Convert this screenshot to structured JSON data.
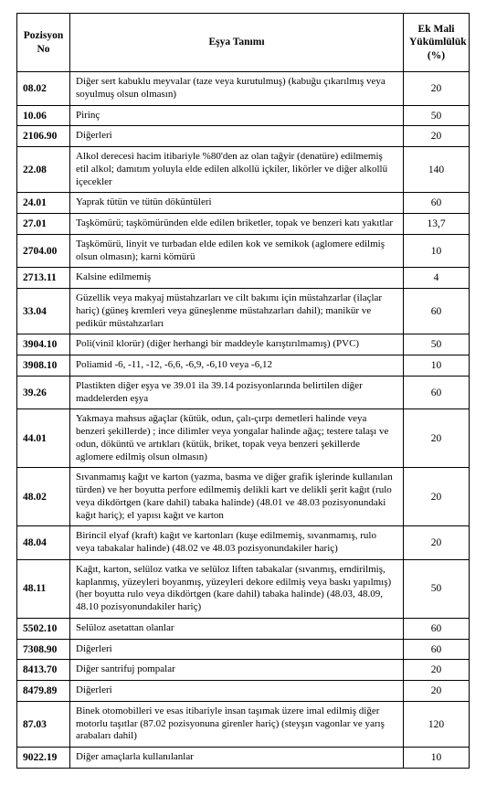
{
  "table": {
    "headers": {
      "position": "Pozisyon No",
      "description": "Eşya Tanımı",
      "percent": "Ek Mali Yükümlülük (%)"
    },
    "rows": [
      {
        "pos": "08.02",
        "desc": "Diğer sert kabuklu meyvalar (taze veya kurutulmuş) (kabuğu çıkarılmış veya soyulmuş olsun olmasın)",
        "pct": "20"
      },
      {
        "pos": "10.06",
        "desc": "Pirinç",
        "pct": "50"
      },
      {
        "pos": "2106.90",
        "desc": "Diğerleri",
        "pct": "20"
      },
      {
        "pos": "22.08",
        "desc": "Alkol derecesi hacim itibariyle %80'den az olan tağyir (denatüre) edilmemiş etil alkol; damıtım yoluyla elde edilen alkollü içkiler, likörler ve diğer alkollü içecekler",
        "pct": "140"
      },
      {
        "pos": "24.01",
        "desc": "Yaprak tütün ve tütün döküntüleri",
        "pct": "60"
      },
      {
        "pos": "27.01",
        "desc": "Taşkömürü; taşkömüründen elde edilen briketler, topak ve benzeri katı yakıtlar",
        "pct": "13,7"
      },
      {
        "pos": "2704.00",
        "desc": "Taşkömürü, linyit ve turbadan elde edilen kok ve semikok (aglomere edilmiş olsun olmasın); karni kömürü",
        "pct": "10"
      },
      {
        "pos": "2713.11",
        "desc": "Kalsine edilmemiş",
        "pct": "4"
      },
      {
        "pos": "33.04",
        "desc": "Güzellik veya makyaj müstahzarları ve cilt bakımı için müstahzarlar (ilaçlar hariç) (güneş kremleri veya güneşlenme müstahzarları dahil); manikür ve pedikür müstahzarları",
        "pct": "60"
      },
      {
        "pos": "3904.10",
        "desc": "Poli(vinil klorür) (diğer herhangi bir maddeyle karıştırılmamış) (PVC)",
        "pct": "50"
      },
      {
        "pos": "3908.10",
        "desc": "Poliamid -6, -11, -12, -6,6, -6,9, -6,10 veya -6,12",
        "pct": "10"
      },
      {
        "pos": "39.26",
        "desc": "Plastikten diğer eşya ve 39.01 ila 39.14 pozisyonlarında belirtilen diğer maddelerden eşya",
        "pct": "60"
      },
      {
        "pos": "44.01",
        "desc": "Yakmaya mahsus ağaçlar (kütük, odun, çalı-çırpı demetleri halinde veya benzeri şekillerde) ; ince dilimler veya yongalar halinde ağaç; testere talaşı ve odun, döküntü ve artıkları (kütük, briket, topak veya benzeri şekillerde aglomere edilmiş olsun olmasın)",
        "pct": "20"
      },
      {
        "pos": "48.02",
        "desc": "Sıvanmamış kağıt ve karton (yazma, basma ve diğer grafik işlerinde kullanılan türden) ve her boyutta perfore edilmemiş delikli kart ve delikli şerit kağıt (rulo veya dikdörtgen (kare dahil) tabaka halinde) (48.01 ve 48.03 pozisyonundaki kağıt hariç); el yapısı kağıt ve karton",
        "pct": "20"
      },
      {
        "pos": "48.04",
        "desc": "Birincil elyaf (kraft) kağıt ve kartonları (kuşe edilmemiş, sıvanmamış, rulo veya tabakalar halinde) (48.02 ve 48.03 pozisyonundakiler hariç)",
        "pct": "20"
      },
      {
        "pos": "48.11",
        "desc": "Kağıt, karton, selüloz vatka ve selüloz liften tabakalar (sıvanmış, emdirilmiş, kaplanmış, yüzeyleri boyanmış, yüzeyleri dekore edilmiş veya baskı yapılmış) (her boyutta rulo veya dikdörtgen (kare dahil) tabaka halinde) (48.03, 48.09, 48.10 pozisyonundakiler hariç)",
        "pct": "50"
      },
      {
        "pos": "5502.10",
        "desc": "Selüloz asetattan olanlar",
        "pct": "60"
      },
      {
        "pos": "7308.90",
        "desc": "Diğerleri",
        "pct": "60"
      },
      {
        "pos": "8413.70",
        "desc": "Diğer santrifuj pompalar",
        "pct": "20"
      },
      {
        "pos": "8479.89",
        "desc": "Diğerleri",
        "pct": "20"
      },
      {
        "pos": "87.03",
        "desc": "Binek otomobilleri ve esas itibariyle insan taşımak üzere imal edilmiş diğer motorlu taşıtlar (87.02 pozisyonuna girenler hariç) (steyşın vagonlar ve yarış arabaları dahil)",
        "pct": "120"
      },
      {
        "pos": "9022.19",
        "desc": "Diğer amaçlarla kullanılanlar",
        "pct": "10"
      }
    ]
  }
}
